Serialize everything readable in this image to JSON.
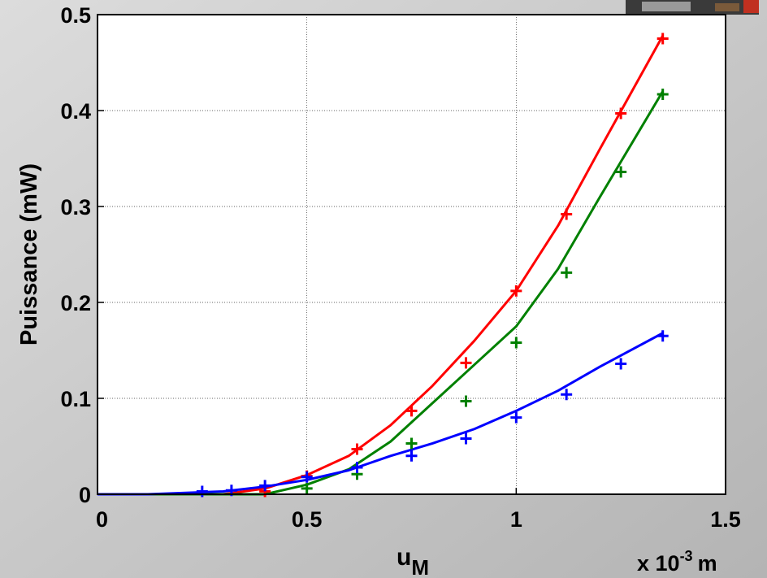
{
  "chart_data": {
    "type": "line",
    "ylabel": "Puissance (mW)",
    "xlabel": "u",
    "xlabel_sub": "M",
    "x_multiplier": [
      "x 10",
      "-3",
      "m"
    ],
    "xlim": [
      0,
      1.5
    ],
    "ylim": [
      0,
      0.5
    ],
    "xticks": [
      0,
      0.5,
      1,
      1.5
    ],
    "yticks": [
      0,
      0.1,
      0.2,
      0.3,
      0.4,
      0.5
    ],
    "grid": true,
    "x": [
      0.25,
      0.32,
      0.4,
      0.5,
      0.62,
      0.75,
      0.88,
      1.0,
      1.12,
      1.25,
      1.35
    ],
    "series": [
      {
        "color": "#ff0000",
        "values": [
          null,
          null,
          0.003,
          0.019,
          0.047,
          0.087,
          0.137,
          0.212,
          0.292,
          0.397,
          0.475
        ]
      },
      {
        "color": "#008000",
        "values": [
          null,
          null,
          null,
          0.006,
          0.021,
          0.053,
          0.097,
          0.158,
          0.231,
          0.336,
          0.417
        ]
      },
      {
        "color": "#0000ff",
        "values": [
          0.003,
          0.004,
          0.009,
          0.018,
          0.028,
          0.04,
          0.058,
          0.08,
          0.104,
          0.136,
          0.165
        ]
      }
    ],
    "fits": [
      {
        "color": "#ff0000",
        "x": [
          0,
          0.3,
          0.4,
          0.5,
          0.6,
          0.7,
          0.8,
          0.9,
          1.0,
          1.1,
          1.2,
          1.35
        ],
        "values": [
          0,
          0,
          0.006,
          0.02,
          0.04,
          0.072,
          0.113,
          0.16,
          0.212,
          0.28,
          0.36,
          0.478
        ]
      },
      {
        "color": "#008000",
        "x": [
          0,
          0.4,
          0.5,
          0.6,
          0.7,
          0.8,
          0.9,
          1.0,
          1.1,
          1.2,
          1.35
        ],
        "values": [
          0,
          0,
          0.01,
          0.026,
          0.055,
          0.095,
          0.135,
          0.175,
          0.235,
          0.31,
          0.42
        ]
      },
      {
        "color": "#0000ff",
        "x": [
          0,
          0.12,
          0.3,
          0.4,
          0.5,
          0.6,
          0.7,
          0.8,
          0.9,
          1.0,
          1.1,
          1.2,
          1.35
        ],
        "values": [
          0,
          0,
          0.003,
          0.008,
          0.015,
          0.025,
          0.04,
          0.053,
          0.068,
          0.087,
          0.108,
          0.133,
          0.168
        ]
      }
    ]
  }
}
